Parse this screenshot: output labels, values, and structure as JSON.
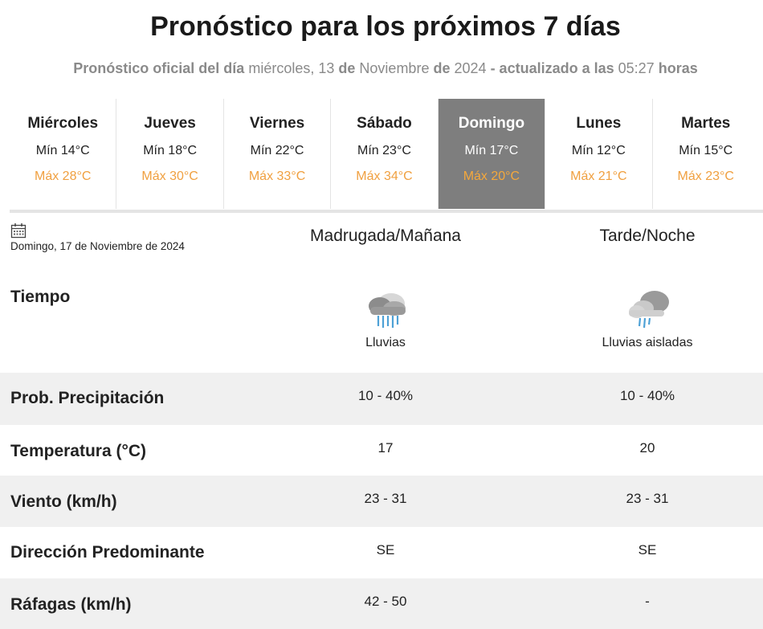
{
  "header": {
    "title": "Pronóstico para los próximos 7 días",
    "subtitle_prefix": "Pronóstico oficial del día",
    "subtitle_day": "miércoles, 13",
    "subtitle_de1": "de",
    "subtitle_month": "Noviembre",
    "subtitle_de2": "de",
    "subtitle_year": "2024",
    "subtitle_updated": "- actualizado a las",
    "subtitle_time": "05:27",
    "subtitle_suffix": "horas"
  },
  "days": [
    {
      "name": "Miércoles",
      "min": "Mín 14°C",
      "max": "Máx 28°C"
    },
    {
      "name": "Jueves",
      "min": "Mín 18°C",
      "max": "Máx 30°C"
    },
    {
      "name": "Viernes",
      "min": "Mín 22°C",
      "max": "Máx 33°C"
    },
    {
      "name": "Sábado",
      "min": "Mín 23°C",
      "max": "Máx 34°C"
    },
    {
      "name": "Domingo",
      "min": "Mín 17°C",
      "max": "Máx 20°C"
    },
    {
      "name": "Lunes",
      "min": "Mín 12°C",
      "max": "Máx 21°C"
    },
    {
      "name": "Martes",
      "min": "Mín 15°C",
      "max": "Máx 23°C"
    }
  ],
  "selected_day": "Domingo",
  "detail": {
    "date": "Domingo, 17 de Noviembre de 2024",
    "col1": "Madrugada/Mañana",
    "col2": "Tarde/Noche",
    "tiempo_label": "Tiempo",
    "tiempo": [
      {
        "icon": "rain-cloud-icon",
        "text": "Lluvias"
      },
      {
        "icon": "isolated-rain-cloud-icon",
        "text": "Lluvias aisladas"
      }
    ],
    "rows": [
      {
        "label": "Prob. Precipitación",
        "v1": "10 - 40%",
        "v2": "10 - 40%"
      },
      {
        "label": "Temperatura (°C)",
        "v1": "17",
        "v2": "20"
      },
      {
        "label": "Viento (km/h)",
        "v1": "23 - 31",
        "v2": "23 - 31"
      },
      {
        "label": "Dirección Predominante",
        "v1": "SE",
        "v2": "SE"
      },
      {
        "label": "Ráfagas (km/h)",
        "v1": "42 - 50",
        "v2": "-"
      }
    ]
  },
  "colors": {
    "max_temp": "#f0a040",
    "selected_bg": "#7e7e7e",
    "row_shade": "#f0f0f0"
  }
}
